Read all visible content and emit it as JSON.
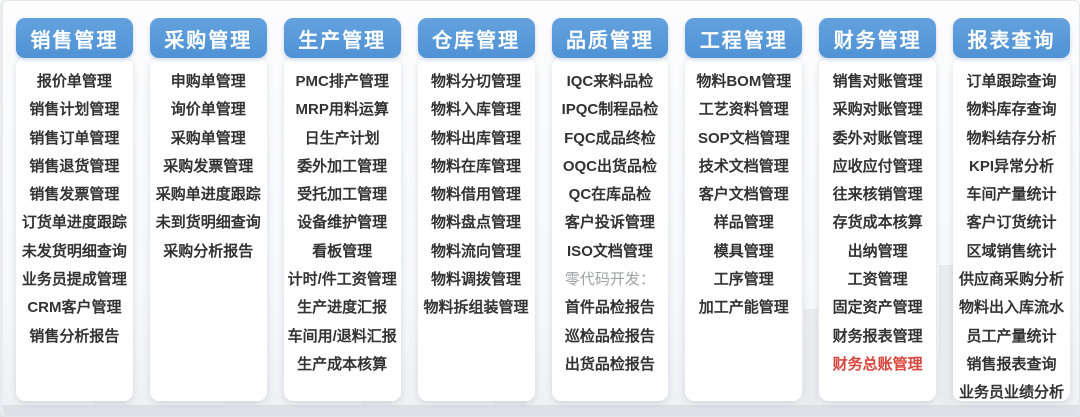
{
  "colors": {
    "header_bg": "#5596d8",
    "header_text": "#ffffff",
    "item_text": "#333333",
    "muted_text": "#9fa0a4",
    "highlight_text": "#d8453c",
    "panel_bg": "#ffffff"
  },
  "columns": [
    {
      "title": "销售管理",
      "items": [
        {
          "label": "报价单管理",
          "style": "normal"
        },
        {
          "label": "销售计划管理",
          "style": "normal"
        },
        {
          "label": "销售订单管理",
          "style": "normal"
        },
        {
          "label": "销售退货管理",
          "style": "normal"
        },
        {
          "label": "销售发票管理",
          "style": "normal"
        },
        {
          "label": "订货单进度跟踪",
          "style": "normal"
        },
        {
          "label": "未发货明细查询",
          "style": "normal"
        },
        {
          "label": "业务员提成管理",
          "style": "normal"
        },
        {
          "label": "CRM客户管理",
          "style": "normal"
        },
        {
          "label": "销售分析报告",
          "style": "normal"
        }
      ]
    },
    {
      "title": "采购管理",
      "items": [
        {
          "label": "申购单管理",
          "style": "normal"
        },
        {
          "label": "询价单管理",
          "style": "normal"
        },
        {
          "label": "采购单管理",
          "style": "normal"
        },
        {
          "label": "采购发票管理",
          "style": "normal"
        },
        {
          "label": "采购单进度跟踪",
          "style": "normal"
        },
        {
          "label": "未到货明细查询",
          "style": "normal"
        },
        {
          "label": "采购分析报告",
          "style": "normal"
        }
      ]
    },
    {
      "title": "生产管理",
      "items": [
        {
          "label": "PMC排产管理",
          "style": "normal"
        },
        {
          "label": "MRP用料运算",
          "style": "normal"
        },
        {
          "label": "日生产计划",
          "style": "normal"
        },
        {
          "label": "委外加工管理",
          "style": "normal"
        },
        {
          "label": "受托加工管理",
          "style": "normal"
        },
        {
          "label": "设备维护管理",
          "style": "normal"
        },
        {
          "label": "看板管理",
          "style": "normal"
        },
        {
          "label": "计时/件工资管理",
          "style": "normal"
        },
        {
          "label": "生产进度汇报",
          "style": "normal"
        },
        {
          "label": "车间用/退料汇报",
          "style": "normal"
        },
        {
          "label": "生产成本核算",
          "style": "normal"
        }
      ]
    },
    {
      "title": "仓库管理",
      "items": [
        {
          "label": "物料分切管理",
          "style": "normal"
        },
        {
          "label": "物料入库管理",
          "style": "normal"
        },
        {
          "label": "物料出库管理",
          "style": "normal"
        },
        {
          "label": "物料在库管理",
          "style": "normal"
        },
        {
          "label": "物料借用管理",
          "style": "normal"
        },
        {
          "label": "物料盘点管理",
          "style": "normal"
        },
        {
          "label": "物料流向管理",
          "style": "normal"
        },
        {
          "label": "物料调拨管理",
          "style": "normal"
        },
        {
          "label": "物料拆组装管理",
          "style": "normal"
        }
      ]
    },
    {
      "title": "品质管理",
      "items": [
        {
          "label": "IQC来料品检",
          "style": "normal"
        },
        {
          "label": "IPQC制程品检",
          "style": "normal"
        },
        {
          "label": "FQC成品终检",
          "style": "normal"
        },
        {
          "label": "OQC出货品检",
          "style": "normal"
        },
        {
          "label": "QC在库品检",
          "style": "normal"
        },
        {
          "label": "客户投诉管理",
          "style": "normal"
        },
        {
          "label": "ISO文档管理",
          "style": "normal"
        },
        {
          "label": "零代码开发：",
          "style": "muted"
        },
        {
          "label": "首件品检报告",
          "style": "normal"
        },
        {
          "label": "巡检品检报告",
          "style": "normal"
        },
        {
          "label": "出货品检报告",
          "style": "normal"
        }
      ]
    },
    {
      "title": "工程管理",
      "items": [
        {
          "label": "物料BOM管理",
          "style": "normal"
        },
        {
          "label": "工艺资料管理",
          "style": "normal"
        },
        {
          "label": "SOP文档管理",
          "style": "normal"
        },
        {
          "label": "技术文档管理",
          "style": "normal"
        },
        {
          "label": "客户文档管理",
          "style": "normal"
        },
        {
          "label": "样品管理",
          "style": "normal"
        },
        {
          "label": "模具管理",
          "style": "normal"
        },
        {
          "label": "工序管理",
          "style": "normal"
        },
        {
          "label": "加工产能管理",
          "style": "normal"
        }
      ]
    },
    {
      "title": "财务管理",
      "items": [
        {
          "label": "销售对账管理",
          "style": "normal"
        },
        {
          "label": "采购对账管理",
          "style": "normal"
        },
        {
          "label": "委外对账管理",
          "style": "normal"
        },
        {
          "label": "应收应付管理",
          "style": "normal"
        },
        {
          "label": "往来核销管理",
          "style": "normal"
        },
        {
          "label": "存货成本核算",
          "style": "normal"
        },
        {
          "label": "出纳管理",
          "style": "normal"
        },
        {
          "label": "工资管理",
          "style": "normal"
        },
        {
          "label": "固定资产管理",
          "style": "normal"
        },
        {
          "label": "财务报表管理",
          "style": "normal"
        },
        {
          "label": "财务总账管理",
          "style": "highlight"
        }
      ]
    },
    {
      "title": "报表查询",
      "items": [
        {
          "label": "订单跟踪查询",
          "style": "normal"
        },
        {
          "label": "物料库存查询",
          "style": "normal"
        },
        {
          "label": "物料结存分析",
          "style": "normal"
        },
        {
          "label": "KPI异常分析",
          "style": "normal"
        },
        {
          "label": "车间产量统计",
          "style": "normal"
        },
        {
          "label": "客户订货统计",
          "style": "normal"
        },
        {
          "label": "区域销售统计",
          "style": "normal"
        },
        {
          "label": "供应商采购分析",
          "style": "normal"
        },
        {
          "label": "物料出入库流水",
          "style": "normal"
        },
        {
          "label": "员工产量统计",
          "style": "normal"
        },
        {
          "label": "销售报表查询",
          "style": "normal"
        },
        {
          "label": "业务员业绩分析",
          "style": "normal"
        }
      ]
    }
  ]
}
